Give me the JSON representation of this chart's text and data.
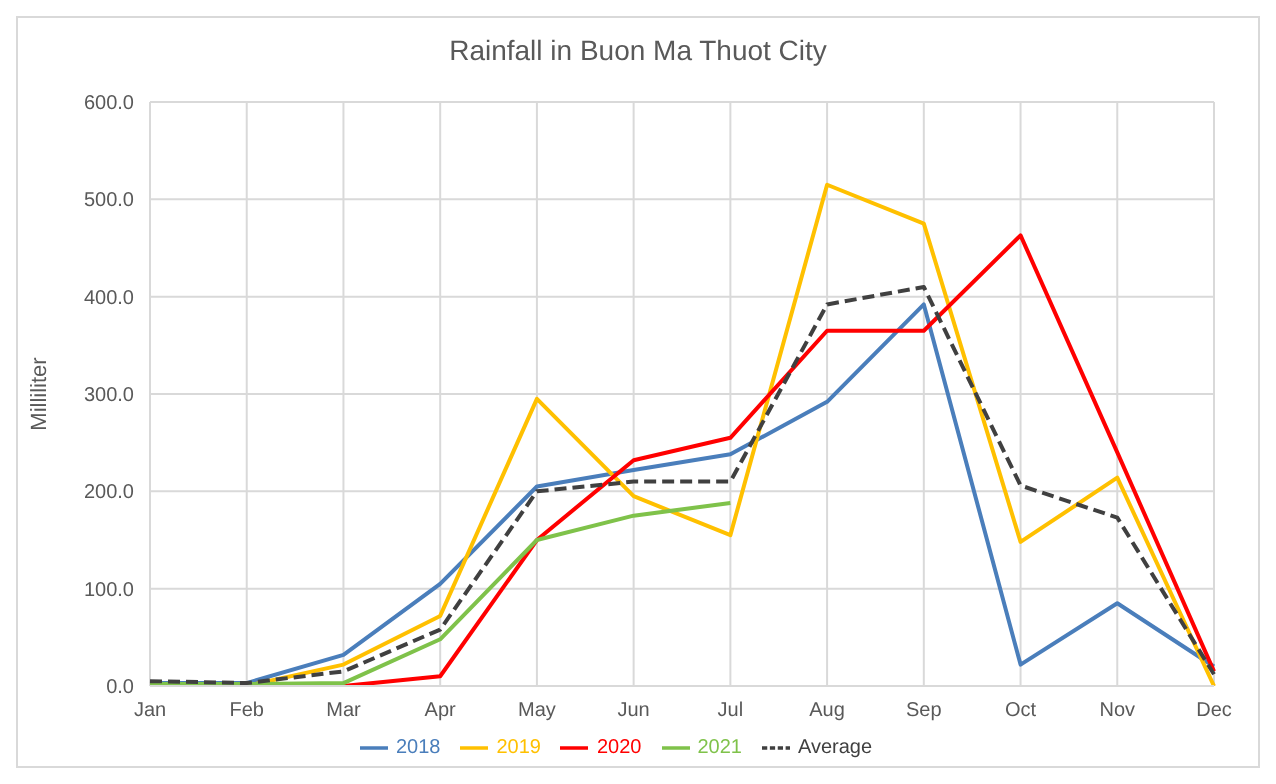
{
  "chart_data": {
    "type": "line",
    "title": "Rainfall in Buon Ma Thuot City",
    "ylabel": "Milliliter",
    "categories": [
      "Jan",
      "Feb",
      "Mar",
      "Apr",
      "May",
      "Jun",
      "Jul",
      "Aug",
      "Sep",
      "Oct",
      "Nov",
      "Dec"
    ],
    "series": [
      {
        "name": "2018",
        "color": "#4a7ebb",
        "values": [
          3,
          3,
          32,
          105,
          205,
          222,
          238,
          292,
          392,
          22,
          85,
          20
        ]
      },
      {
        "name": "2019",
        "color": "#ffc000",
        "values": [
          0,
          0,
          22,
          72,
          295,
          195,
          155,
          515,
          475,
          148,
          214,
          0
        ]
      },
      {
        "name": "2020",
        "color": "#ff0000",
        "values": [
          0,
          0,
          0,
          10,
          150,
          232,
          255,
          365,
          365,
          463,
          240,
          15
        ]
      },
      {
        "name": "2021",
        "color": "#7fc24a",
        "values": [
          2,
          2,
          3,
          48,
          150,
          175,
          188,
          null,
          null,
          null,
          null,
          null
        ]
      },
      {
        "name": "Average",
        "color": "#404040",
        "line_style": "dashed",
        "values": [
          5,
          3,
          15,
          58,
          200,
          210,
          210,
          392,
          410,
          206,
          173,
          12
        ]
      }
    ],
    "ylim": [
      0,
      600
    ],
    "yticks": [
      {
        "value": 0,
        "label": "0.0"
      },
      {
        "value": 100,
        "label": "100.0"
      },
      {
        "value": 200,
        "label": "200.0"
      },
      {
        "value": 300,
        "label": "300.0"
      },
      {
        "value": 400,
        "label": "400.0"
      },
      {
        "value": 500,
        "label": "500.0"
      },
      {
        "value": 600,
        "label": "600.0"
      }
    ],
    "grid": true,
    "legend": "bottom",
    "marker": "none"
  }
}
